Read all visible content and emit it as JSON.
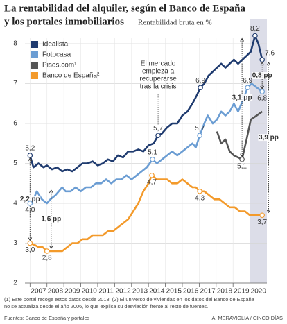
{
  "chart_data": {
    "type": "line",
    "title": [
      "La rentabilidad del alquiler, según el Banco de España",
      "y los portales inmobiliarios"
    ],
    "subtitle": "Rentabilidad bruta en %",
    "xlim": [
      2006.7,
      2021
    ],
    "xticks": [
      2007,
      2008,
      2009,
      2010,
      2011,
      2012,
      2013,
      2014,
      2015,
      2016,
      2017,
      2018,
      2019,
      2020
    ],
    "ylim": [
      2,
      8
    ],
    "yticks": [
      2,
      3,
      4,
      5,
      6,
      7,
      8
    ],
    "grid": true,
    "shade": [
      2020,
      2021
    ],
    "legend": "top-left",
    "series": [
      {
        "name": "Idealista",
        "color": "#1f3b6f",
        "x": [
          2007.0,
          2007.2,
          2007.5,
          2007.8,
          2008.0,
          2008.3,
          2008.6,
          2008.9,
          2009.2,
          2009.5,
          2009.8,
          2010.1,
          2010.4,
          2010.7,
          2011.0,
          2011.3,
          2011.6,
          2011.9,
          2012.2,
          2012.5,
          2012.8,
          2013.1,
          2013.4,
          2013.7,
          2014.0,
          2014.3,
          2014.57,
          2014.8,
          2015.1,
          2015.4,
          2015.7,
          2016.0,
          2016.3,
          2016.6,
          2016.85,
          2017.07,
          2017.3,
          2017.55,
          2017.8,
          2018.05,
          2018.3,
          2018.55,
          2018.8,
          2019.05,
          2019.3,
          2019.55,
          2019.8,
          2020.05,
          2020.3,
          2020.5,
          2020.72
        ],
        "values": [
          5.2,
          4.9,
          5.0,
          4.9,
          4.95,
          4.85,
          4.9,
          4.8,
          4.85,
          4.8,
          4.9,
          5.0,
          5.0,
          5.05,
          4.95,
          5.0,
          5.1,
          5.05,
          5.2,
          5.15,
          5.3,
          5.3,
          5.35,
          5.3,
          5.45,
          5.5,
          5.7,
          5.75,
          5.9,
          6.0,
          6.0,
          6.2,
          6.3,
          6.5,
          6.7,
          6.9,
          7.0,
          7.2,
          7.3,
          7.4,
          7.5,
          7.4,
          7.5,
          7.6,
          7.5,
          7.6,
          7.7,
          7.8,
          8.2,
          8.0,
          7.6
        ]
      },
      {
        "name": "Fotocasa",
        "color": "#6b9dd3",
        "x": [
          2007.0,
          2007.2,
          2007.4,
          2007.7,
          2008.0,
          2008.2,
          2008.5,
          2008.7,
          2008.9,
          2009.1,
          2009.4,
          2009.7,
          2010.0,
          2010.3,
          2010.6,
          2010.9,
          2011.2,
          2011.5,
          2011.8,
          2012.1,
          2012.4,
          2012.7,
          2013.0,
          2013.3,
          2013.6,
          2013.9,
          2014.24,
          2014.5,
          2014.8,
          2015.1,
          2015.4,
          2015.7,
          2016.0,
          2016.3,
          2016.6,
          2016.8,
          2017.03,
          2017.3,
          2017.5,
          2017.8,
          2018.05,
          2018.3,
          2018.55,
          2018.8,
          2019.05,
          2019.3,
          2019.6,
          2019.86,
          2020.1,
          2020.4,
          2020.72
        ],
        "values": [
          4.0,
          4.1,
          4.3,
          4.1,
          4.0,
          4.1,
          4.2,
          4.3,
          4.4,
          4.3,
          4.3,
          4.4,
          4.3,
          4.4,
          4.4,
          4.5,
          4.5,
          4.6,
          4.5,
          4.6,
          4.6,
          4.7,
          4.6,
          4.7,
          4.8,
          4.9,
          5.1,
          5.0,
          5.1,
          5.2,
          5.3,
          5.2,
          5.3,
          5.4,
          5.5,
          5.4,
          5.7,
          6.0,
          6.2,
          6.0,
          6.1,
          6.3,
          6.2,
          6.3,
          6.5,
          6.3,
          6.6,
          6.9,
          7.0,
          6.9,
          6.8
        ]
      },
      {
        "name": "Pisos.com¹",
        "color": "#555555",
        "x": [
          2018.05,
          2018.3,
          2018.55,
          2018.8,
          2019.05,
          2019.3,
          2019.53,
          2019.8,
          2020.05,
          2020.4,
          2020.72
        ],
        "values": [
          5.8,
          5.5,
          5.6,
          5.3,
          5.2,
          5.15,
          5.1,
          5.6,
          6.1,
          6.2,
          6.3
        ]
      },
      {
        "name": "Banco de España²",
        "color": "#f39a2b",
        "x": [
          2007.0,
          2007.3,
          2007.5,
          2007.75,
          2008.0,
          2008.3,
          2008.6,
          2008.9,
          2009.2,
          2009.5,
          2009.8,
          2010.1,
          2010.4,
          2010.7,
          2011.0,
          2011.3,
          2011.6,
          2011.9,
          2012.2,
          2012.5,
          2012.8,
          2013.1,
          2013.4,
          2013.7,
          2014.0,
          2014.2,
          2014.5,
          2014.8,
          2015.1,
          2015.4,
          2015.7,
          2016.0,
          2016.3,
          2016.6,
          2016.8,
          2017.03,
          2017.3,
          2017.6,
          2017.9,
          2018.2,
          2018.5,
          2018.8,
          2019.1,
          2019.4,
          2019.7,
          2020.0,
          2020.3,
          2020.72
        ],
        "values": [
          3.0,
          2.95,
          2.9,
          2.9,
          2.8,
          2.8,
          2.8,
          2.8,
          2.9,
          3.0,
          3.0,
          3.1,
          3.1,
          3.2,
          3.2,
          3.2,
          3.3,
          3.3,
          3.4,
          3.5,
          3.6,
          3.8,
          4.0,
          4.3,
          4.5,
          4.7,
          4.6,
          4.6,
          4.6,
          4.5,
          4.5,
          4.6,
          4.5,
          4.4,
          4.4,
          4.3,
          4.3,
          4.2,
          4.1,
          4.1,
          4.0,
          3.9,
          3.9,
          3.8,
          3.8,
          3.7,
          3.7,
          3.7
        ]
      }
    ],
    "annotations": [
      {
        "x": 2007.0,
        "y": 5.2,
        "label": "5,2",
        "color": "#1f3b6f",
        "side": "above"
      },
      {
        "x": 2007.0,
        "y": 4.0,
        "label": "4,0",
        "color": "#6b9dd3",
        "side": "below"
      },
      {
        "x": 2007.0,
        "y": 3.0,
        "label": "3,0",
        "color": "#f39a2b",
        "side": "below"
      },
      {
        "x": 2008.0,
        "y": 2.8,
        "label": "2,8",
        "color": "#f39a2b",
        "side": "below"
      },
      {
        "x": 2014.57,
        "y": 5.7,
        "label": "5,7",
        "color": "#1f3b6f",
        "side": "above"
      },
      {
        "x": 2014.24,
        "y": 5.1,
        "label": "5,1",
        "color": "#6b9dd3",
        "side": "above"
      },
      {
        "x": 2014.2,
        "y": 4.7,
        "label": "4,7",
        "color": "#f39a2b",
        "side": "below"
      },
      {
        "x": 2017.07,
        "y": 6.9,
        "label": "6,9",
        "color": "#1f3b6f",
        "side": "above"
      },
      {
        "x": 2017.03,
        "y": 5.7,
        "label": "5,7",
        "color": "#6b9dd3",
        "side": "above"
      },
      {
        "x": 2017.03,
        "y": 4.3,
        "label": "4,3",
        "color": "#f39a2b",
        "side": "below"
      },
      {
        "x": 2020.3,
        "y": 8.2,
        "label": "8,2",
        "color": "#1f3b6f",
        "side": "above"
      },
      {
        "x": 2019.86,
        "y": 6.9,
        "label": "6,9",
        "color": "#6b9dd3",
        "side": "above"
      },
      {
        "x": 2020.72,
        "y": 7.6,
        "label": "7,6",
        "color": "#1f3b6f",
        "side": "right"
      },
      {
        "x": 2020.72,
        "y": 6.8,
        "label": "6,8",
        "color": "#6b9dd3",
        "side": "below"
      },
      {
        "x": 2019.53,
        "y": 5.1,
        "label": "5,1",
        "color": "#555555",
        "side": "below"
      },
      {
        "x": 2020.72,
        "y": 3.7,
        "label": "3,7",
        "color": "#f39a2b",
        "side": "below"
      }
    ],
    "brackets": [
      {
        "x": 2007.0,
        "from": 5.2,
        "to": 3.0,
        "label": "2,2 pp"
      },
      {
        "x": 2008.25,
        "from": 4.4,
        "to": 2.8,
        "label": "1,6 pp"
      },
      {
        "x": 2019.53,
        "from": 8.2,
        "to": 5.1,
        "label": "3,1 pp"
      },
      {
        "x": 2020.72,
        "from": 7.6,
        "to": 6.8,
        "label": "0,8 pp"
      },
      {
        "x": 2021.1,
        "from": 7.6,
        "to": 3.7,
        "label": "3,9 pp"
      }
    ],
    "note": {
      "x": 2014.57,
      "lines": [
        "El mercado",
        "empieza a",
        "recuperarse",
        "tras la crisis"
      ]
    },
    "footnote": [
      "(1) Este portal recoge estos datos desde 2018. (2) El universo de viviendas en los datos del Banco de España",
      "no se actualiza desde el año 2006, lo que explica su desviación frente al resto de fuentes."
    ],
    "source": "Fuentes: Banco de España y portales",
    "credit": "A. MERAVIGLIA / CINCO DÍAS"
  }
}
